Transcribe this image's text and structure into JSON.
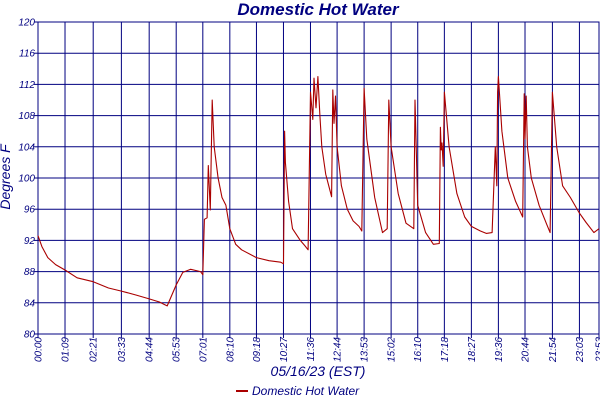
{
  "chart_data": {
    "type": "line",
    "title": "Domestic Hot Water",
    "xlabel": "05/16/23 (EST)",
    "ylabel": "Degrees F",
    "ylim": [
      80,
      120
    ],
    "y_ticks": [
      "80",
      "84",
      "88",
      "92",
      "96",
      "100",
      "104",
      "108",
      "112",
      "116",
      "120"
    ],
    "x_ticks": [
      "00:00",
      "01:09",
      "02:21",
      "03:33",
      "04:44",
      "05:53",
      "07:01",
      "08:10",
      "09:18",
      "10:27",
      "11:36",
      "12:44",
      "13:53",
      "15:02",
      "16:10",
      "17:18",
      "18:27",
      "19:36",
      "20:44",
      "21:54",
      "23:03",
      "23:53"
    ],
    "grid": true,
    "legend_position": "bottom-center",
    "colors": {
      "axes": "#000080",
      "grid": "#000080",
      "series": "#aa0000",
      "text": "#000080",
      "background": "#ffffff"
    },
    "series": [
      {
        "name": "Domestic Hot Water",
        "x": [
          "00:00",
          "00:10",
          "00:25",
          "00:45",
          "01:09",
          "01:40",
          "02:21",
          "03:00",
          "03:33",
          "04:10",
          "04:44",
          "05:10",
          "05:22",
          "05:30",
          "05:53",
          "06:10",
          "06:30",
          "06:55",
          "07:01",
          "07:05",
          "07:12",
          "07:15",
          "07:20",
          "07:25",
          "07:30",
          "07:40",
          "07:50",
          "08:00",
          "08:10",
          "08:25",
          "08:40",
          "09:18",
          "09:50",
          "10:20",
          "10:27",
          "10:30",
          "10:32",
          "10:40",
          "10:50",
          "11:10",
          "11:22",
          "11:30",
          "11:36",
          "11:42",
          "11:45",
          "11:50",
          "11:55",
          "12:00",
          "12:05",
          "12:15",
          "12:30",
          "12:33",
          "12:36",
          "12:40",
          "12:44",
          "12:55",
          "13:10",
          "13:25",
          "13:40",
          "13:47",
          "13:53",
          "14:00",
          "14:20",
          "14:40",
          "14:52",
          "14:56",
          "15:02",
          "15:20",
          "15:40",
          "16:00",
          "16:03",
          "16:07",
          "16:10",
          "16:30",
          "16:50",
          "17:05",
          "17:08",
          "17:10",
          "17:12",
          "17:15",
          "17:18",
          "17:30",
          "17:50",
          "18:10",
          "18:27",
          "18:50",
          "19:05",
          "19:20",
          "19:28",
          "19:32",
          "19:34",
          "19:36",
          "19:45",
          "20:00",
          "20:20",
          "20:38",
          "20:42",
          "20:44",
          "20:47",
          "20:50",
          "21:00",
          "21:20",
          "21:40",
          "21:48",
          "21:54",
          "22:05",
          "22:20",
          "22:40",
          "23:03",
          "23:20",
          "23:40",
          "23:53"
        ],
        "values": [
          92.6,
          91.2,
          89.8,
          88.9,
          88.2,
          87.2,
          86.7,
          85.9,
          85.5,
          85.0,
          84.5,
          84.1,
          83.8,
          83.6,
          86.3,
          87.9,
          88.3,
          88.0,
          87.6,
          94.7,
          94.9,
          101.6,
          95.9,
          110.0,
          104.0,
          100.0,
          97.5,
          96.5,
          93.5,
          91.5,
          90.8,
          89.8,
          89.4,
          89.2,
          89.0,
          106.0,
          102.0,
          97.0,
          93.5,
          92.0,
          91.3,
          90.8,
          111.0,
          107.5,
          112.8,
          109.0,
          113.0,
          108.0,
          104.0,
          100.5,
          97.6,
          111.3,
          107.0,
          110.5,
          104.0,
          99.0,
          96.0,
          94.5,
          93.8,
          93.2,
          111.5,
          105.0,
          97.5,
          93.0,
          93.5,
          110.0,
          104.0,
          98.0,
          94.2,
          93.5,
          110.0,
          102.0,
          96.5,
          93.0,
          91.5,
          91.6,
          106.5,
          103.6,
          104.5,
          101.5,
          111.0,
          104.0,
          98.0,
          95.0,
          93.8,
          93.2,
          92.9,
          93.0,
          104.0,
          99.0,
          111.0,
          113.0,
          106.0,
          100.0,
          97.0,
          95.0,
          110.8,
          105.0,
          110.5,
          104.0,
          100.0,
          96.5,
          94.0,
          93.0,
          111.0,
          104.0,
          99.0,
          97.5,
          95.5,
          94.3,
          93.0,
          93.5
        ]
      }
    ]
  }
}
